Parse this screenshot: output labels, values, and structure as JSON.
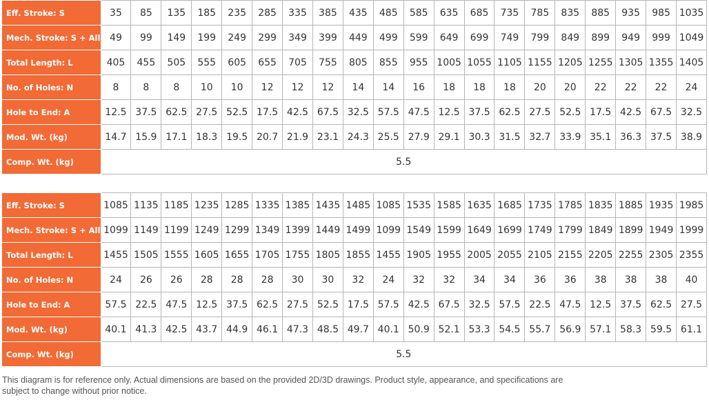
{
  "tables": [
    {
      "rows": [
        {
          "label": "Eff. Stroke: S",
          "cells": [
            "35",
            "85",
            "135",
            "185",
            "235",
            "285",
            "335",
            "385",
            "435",
            "485",
            "585",
            "635",
            "685",
            "735",
            "785",
            "835",
            "885",
            "935",
            "985",
            "1035"
          ]
        },
        {
          "label": "Mech. Stroke: S + All.",
          "cells": [
            "49",
            "99",
            "149",
            "199",
            "249",
            "299",
            "349",
            "399",
            "449",
            "499",
            "599",
            "649",
            "699",
            "749",
            "799",
            "849",
            "899",
            "949",
            "999",
            "1049"
          ]
        },
        {
          "label": "Total Length: L",
          "cells": [
            "405",
            "455",
            "505",
            "555",
            "605",
            "655",
            "705",
            "755",
            "805",
            "855",
            "955",
            "1005",
            "1055",
            "1105",
            "1155",
            "1205",
            "1255",
            "1305",
            "1355",
            "1405"
          ]
        },
        {
          "label": "No. of Holes: N",
          "cells": [
            "8",
            "8",
            "8",
            "10",
            "10",
            "12",
            "12",
            "12",
            "14",
            "14",
            "16",
            "18",
            "18",
            "18",
            "20",
            "20",
            "22",
            "22",
            "22",
            "24"
          ]
        },
        {
          "label": "Hole to End: A",
          "cells": [
            "12.5",
            "37.5",
            "62.5",
            "27.5",
            "52.5",
            "17.5",
            "42.5",
            "67.5",
            "32.5",
            "57.5",
            "47.5",
            "12.5",
            "37.5",
            "62.5",
            "27.5",
            "52.5",
            "17.5",
            "42.5",
            "67.5",
            "32.5"
          ]
        },
        {
          "label": "Mod. Wt. (kg)",
          "cells": [
            "14.7",
            "15.9",
            "17.1",
            "18.3",
            "19.5",
            "20.7",
            "21.9",
            "23.1",
            "24.3",
            "25.5",
            "27.9",
            "29.1",
            "30.3",
            "31.5",
            "32.7",
            "33.9",
            "35.1",
            "36.3",
            "37.5",
            "38.9"
          ]
        },
        {
          "label": "Comp. Wt. (kg)",
          "cells": [
            "5.5"
          ]
        }
      ]
    },
    {
      "rows": [
        {
          "label": "Eff. Stroke: S",
          "cells": [
            "1085",
            "1135",
            "1185",
            "1235",
            "1285",
            "1335",
            "1385",
            "1435",
            "1485",
            "1085",
            "1535",
            "1585",
            "1635",
            "1685",
            "1735",
            "1785",
            "1835",
            "1885",
            "1935",
            "1985"
          ]
        },
        {
          "label": "Mech. Stroke: S + All.",
          "cells": [
            "1099",
            "1149",
            "1199",
            "1249",
            "1299",
            "1349",
            "1399",
            "1449",
            "1499",
            "1099",
            "1549",
            "1599",
            "1649",
            "1699",
            "1749",
            "1799",
            "1849",
            "1899",
            "1949",
            "1999"
          ]
        },
        {
          "label": "Total Length: L",
          "cells": [
            "1455",
            "1505",
            "1555",
            "1605",
            "1655",
            "1705",
            "1755",
            "1805",
            "1855",
            "1455",
            "1905",
            "1955",
            "2005",
            "2055",
            "2105",
            "2155",
            "2205",
            "2255",
            "2305",
            "2355"
          ]
        },
        {
          "label": "No. of Holes: N",
          "cells": [
            "24",
            "26",
            "26",
            "28",
            "28",
            "28",
            "30",
            "30",
            "32",
            "24",
            "32",
            "32",
            "34",
            "34",
            "36",
            "36",
            "38",
            "38",
            "38",
            "40"
          ]
        },
        {
          "label": "Hole to End: A",
          "cells": [
            "57.5",
            "22.5",
            "47.5",
            "12.5",
            "37.5",
            "62.5",
            "27.5",
            "52.5",
            "17.5",
            "57.5",
            "42.5",
            "67.5",
            "32.5",
            "57.5",
            "22.5",
            "47.5",
            "12.5",
            "37.5",
            "62.5",
            "27.5"
          ]
        },
        {
          "label": "Mod. Wt. (kg)",
          "cells": [
            "40.1",
            "41.3",
            "42.5",
            "43.7",
            "44.9",
            "46.1",
            "47.3",
            "48.5",
            "49.7",
            "40.1",
            "50.9",
            "52.1",
            "53.3",
            "54.5",
            "55.7",
            "56.9",
            "57.1",
            "58.3",
            "59.5",
            "61.1"
          ]
        },
        {
          "label": "Comp. Wt. (kg)",
          "cells": [
            "5.5"
          ]
        }
      ]
    }
  ],
  "note": "This diagram is for reference only. Actual dimensions are based on the provided 2D/3D drawings. Product style, appearance, and specifications are subject to change without prior notice."
}
